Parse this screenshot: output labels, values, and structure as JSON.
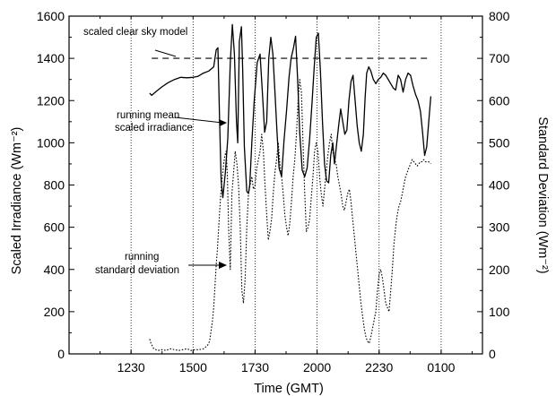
{
  "chart_data": {
    "type": "line",
    "xlabel": "Time (GMT)",
    "ylabel_left": "Scaled Irradiance (Wm⁻²)",
    "ylabel_right": "Standard Deviation (Wm⁻²)",
    "x_unit": "minutes since 1000 GMT",
    "xlim": [
      0,
      1500
    ],
    "ylim_left": [
      0,
      1600
    ],
    "ylim_right": [
      0,
      800
    ],
    "x_ticks": [
      {
        "value": 150,
        "label": "1230"
      },
      {
        "value": 300,
        "label": "1500"
      },
      {
        "value": 450,
        "label": "1730"
      },
      {
        "value": 600,
        "label": "2000"
      },
      {
        "value": 750,
        "label": "2230"
      },
      {
        "value": 900,
        "label": "0100"
      }
    ],
    "y_ticks_left": [
      0,
      200,
      400,
      600,
      800,
      1000,
      1200,
      1400,
      1600
    ],
    "y_ticks_right": [
      0,
      100,
      200,
      300,
      400,
      500,
      600,
      700,
      800
    ],
    "grid": "vertical dotted lines at 1230, 1500, 1730, 2000, 2230, 0100",
    "annotations": [
      "scaled clear sky model",
      "running mean scaled irradiance",
      "running standard deviation"
    ],
    "series": [
      {
        "name": "scaled clear sky model",
        "axis": "left",
        "style": "dashed",
        "x": [
          200,
          875
        ],
        "y": [
          1400,
          1400
        ]
      },
      {
        "name": "running mean scaled irradiance",
        "axis": "left",
        "style": "solid",
        "x": [
          195,
          200,
          212,
          225,
          240,
          255,
          270,
          285,
          300,
          312,
          325,
          338,
          350,
          356,
          360,
          364,
          368,
          372,
          378,
          384,
          390,
          395,
          400,
          405,
          408,
          412,
          417,
          420,
          424,
          430,
          434,
          437,
          442,
          448,
          455,
          462,
          468,
          473,
          478,
          483,
          488,
          493,
          498,
          503,
          508,
          514,
          520,
          526,
          532,
          537,
          543,
          548,
          553,
          558,
          564,
          570,
          576,
          582,
          588,
          593,
          598,
          603,
          608,
          613,
          618,
          623,
          628,
          633,
          638,
          642,
          647,
          652,
          657,
          662,
          667,
          672,
          677,
          682,
          687,
          692,
          697,
          702,
          707,
          712,
          716,
          720,
          725,
          730,
          736,
          742,
          748,
          754,
          760,
          766,
          772,
          778,
          784,
          790,
          796,
          802,
          808,
          814,
          820,
          826,
          832,
          838,
          844,
          850,
          855,
          860,
          865,
          870,
          875
        ],
        "y": [
          1235,
          1225,
          1245,
          1265,
          1285,
          1300,
          1310,
          1308,
          1310,
          1315,
          1330,
          1340,
          1360,
          1440,
          1450,
          1120,
          820,
          740,
          860,
          1020,
          1380,
          1560,
          1420,
          1100,
          1000,
          1480,
          1550,
          1350,
          980,
          770,
          760,
          800,
          1000,
          1200,
          1380,
          1420,
          1230,
          1050,
          1100,
          1400,
          1500,
          1420,
          1240,
          1050,
          880,
          840,
          1010,
          1150,
          1310,
          1400,
          1450,
          1505,
          1300,
          1050,
          870,
          840,
          880,
          1020,
          1200,
          1360,
          1500,
          1520,
          1340,
          1100,
          900,
          820,
          810,
          940,
          1000,
          900,
          990,
          1080,
          1160,
          1100,
          1040,
          1060,
          1200,
          1290,
          1320,
          1200,
          1080,
          1000,
          960,
          1040,
          1210,
          1330,
          1360,
          1340,
          1300,
          1280,
          1300,
          1310,
          1330,
          1320,
          1300,
          1280,
          1260,
          1250,
          1320,
          1300,
          1240,
          1300,
          1330,
          1320,
          1270,
          1230,
          1200,
          1150,
          1050,
          940,
          980,
          1100,
          1220
        ]
      },
      {
        "name": "running standard deviation",
        "axis": "right",
        "style": "dotted",
        "x": [
          195,
          198,
          205,
          215,
          225,
          235,
          245,
          255,
          265,
          275,
          285,
          295,
          305,
          315,
          325,
          335,
          340,
          343,
          347,
          350,
          353,
          356,
          359,
          362,
          365,
          368,
          371,
          374,
          377,
          380,
          383,
          386,
          390,
          394,
          398,
          402,
          406,
          410,
          414,
          418,
          422,
          426,
          430,
          434,
          438,
          442,
          446,
          450,
          454,
          458,
          462,
          466,
          470,
          474,
          478,
          482,
          486,
          490,
          494,
          498,
          502,
          506,
          510,
          514,
          518,
          522,
          526,
          530,
          534,
          538,
          542,
          546,
          550,
          554,
          558,
          562,
          566,
          570,
          574,
          578,
          582,
          586,
          590,
          594,
          598,
          602,
          606,
          610,
          614,
          618,
          622,
          626,
          630,
          634,
          638,
          642,
          646,
          650,
          654,
          658,
          662,
          666,
          670,
          674,
          678,
          682,
          686,
          690,
          694,
          698,
          702,
          706,
          710,
          714,
          718,
          722,
          726,
          730,
          734,
          738,
          742,
          746,
          750,
          754,
          758,
          762,
          766,
          770,
          774,
          778,
          782,
          786,
          790,
          794,
          798,
          802,
          806,
          810,
          814,
          818,
          822,
          826,
          830,
          834,
          838,
          842,
          846,
          850,
          854,
          858,
          862,
          866,
          870,
          875
        ],
        "y": [
          35,
          25,
          12,
          8,
          10,
          8,
          12,
          10,
          8,
          10,
          12,
          8,
          10,
          10,
          12,
          20,
          30,
          50,
          80,
          110,
          160,
          210,
          250,
          300,
          350,
          390,
          420,
          450,
          470,
          480,
          420,
          300,
          200,
          380,
          430,
          480,
          450,
          400,
          300,
          150,
          120,
          180,
          300,
          380,
          400,
          420,
          390,
          400,
          440,
          460,
          480,
          520,
          480,
          400,
          330,
          270,
          290,
          320,
          380,
          430,
          460,
          500,
          450,
          420,
          380,
          330,
          300,
          280,
          310,
          360,
          420,
          460,
          520,
          600,
          650,
          620,
          500,
          380,
          290,
          300,
          320,
          370,
          420,
          480,
          500,
          480,
          420,
          380,
          350,
          390,
          430,
          470,
          500,
          520,
          480,
          460,
          450,
          420,
          400,
          380,
          350,
          340,
          360,
          380,
          390,
          360,
          320,
          280,
          240,
          200,
          160,
          120,
          90,
          60,
          40,
          30,
          25,
          40,
          60,
          80,
          100,
          150,
          190,
          200,
          180,
          150,
          120,
          110,
          100,
          150,
          200,
          260,
          300,
          330,
          350,
          360,
          380,
          400,
          420,
          430,
          440,
          450,
          460,
          455,
          450,
          445,
          450,
          455,
          455,
          460,
          455,
          455,
          455,
          450
        ]
      }
    ]
  }
}
